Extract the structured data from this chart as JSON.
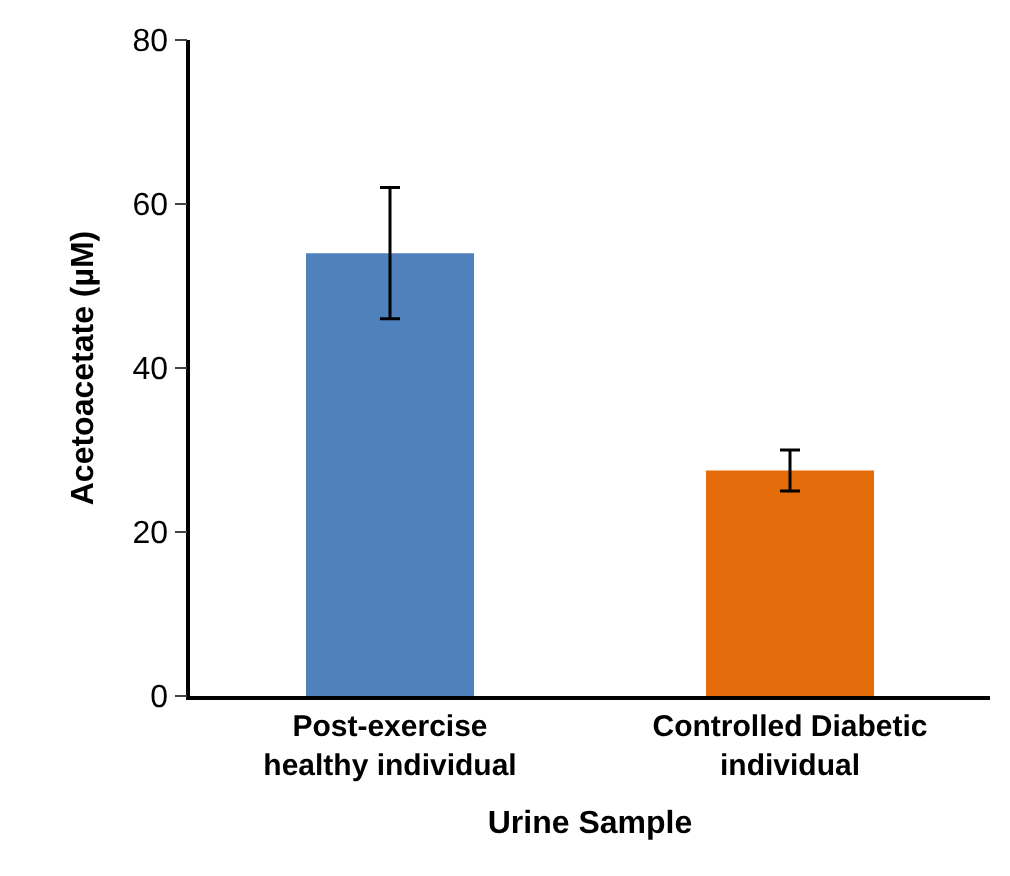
{
  "chart_data": {
    "type": "bar",
    "xlabel": "Urine Sample",
    "ylabel": "Acetoacetate (µM)",
    "categories": [
      "Post-exercise\nhealthy individual",
      "Controlled Diabetic\nindividual"
    ],
    "values": [
      54,
      27.5
    ],
    "colors": [
      "#4f81bd",
      "#e46c0a"
    ],
    "errors": [
      8,
      2.5
    ],
    "ylim": [
      0,
      80
    ],
    "yticks": [
      0,
      20,
      40,
      60,
      80
    ]
  }
}
